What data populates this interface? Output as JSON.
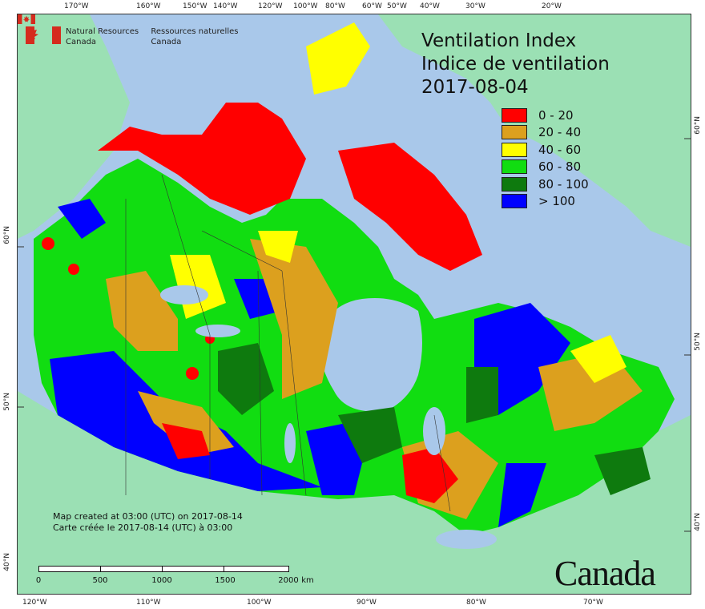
{
  "map": {
    "title_en": "Ventilation Index",
    "title_fr": "Indice de ventilation",
    "date": "2017-08-04",
    "legend": [
      {
        "label": "0 - 20",
        "color": "#ff0000"
      },
      {
        "label": "20 - 40",
        "color": "#dca01e"
      },
      {
        "label": "40 - 60",
        "color": "#ffff00"
      },
      {
        "label": "60 - 80",
        "color": "#11dd11"
      },
      {
        "label": "80 - 100",
        "color": "#0e7a0e"
      },
      {
        "label": "> 100",
        "color": "#0000ff"
      }
    ],
    "credits_en": "Map created at 03:00 (UTC) on 2017-08-14",
    "credits_fr": "Carte créée le 2017-08-14 (UTC) à 03:00",
    "scale_labels": [
      "0",
      "500",
      "1000",
      "1500",
      "2000",
      "km"
    ],
    "org_en_1": "Natural Resources",
    "org_en_2": "Canada",
    "org_fr_1": "Ressources naturelles",
    "org_fr_2": "Canada",
    "wordmark": "Canada",
    "top_lon_labels": [
      "170°W",
      "160°W",
      "150°W",
      "140°W",
      "120°W",
      "100°W",
      "80°W",
      "60°W",
      "50°W",
      "40°W",
      "30°W",
      "20°W"
    ],
    "bottom_lon_labels": [
      "120°W",
      "110°W",
      "100°W",
      "90°W",
      "80°W",
      "70°W"
    ],
    "left_lat_labels": [
      "60°N",
      "50°N",
      "40°N"
    ],
    "right_lat_labels": [
      "60°N",
      "50°N",
      "40°N"
    ],
    "colors": {
      "water": "#a9c8ea",
      "land_other": "#9be0b4",
      "frame": "#333333"
    }
  }
}
